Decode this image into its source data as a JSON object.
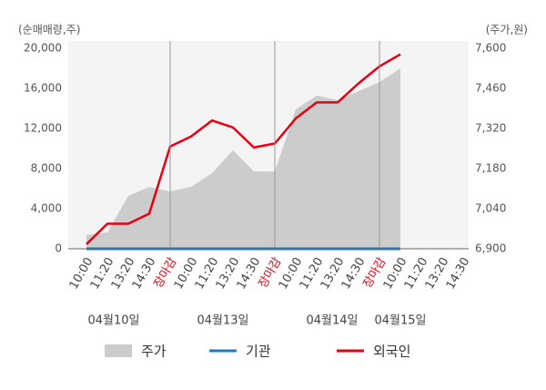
{
  "chart_data": {
    "type": "line",
    "y_axis_label": "(순매매량,주)",
    "y2_axis_label": "(주가,원)",
    "categories": [
      "10:00",
      "11:20",
      "13:20",
      "14:30",
      "장마감",
      "10:00",
      "11:20",
      "13:20",
      "14:30",
      "장마감",
      "10:00",
      "11:20",
      "13:20",
      "14:30",
      "장마감",
      "10:00",
      "11:20",
      "13:20",
      "14:30"
    ],
    "dates": [
      "04월10일",
      "04월13일",
      "04월14일",
      "04월15일"
    ],
    "ylim": [
      0,
      20000
    ],
    "yticks": [
      0,
      {
        "value": 4000,
        "label": "4,000"
      },
      {
        "value": 8000,
        "label": "8,000"
      },
      {
        "value": 12000,
        "label": "12,000"
      },
      {
        "value": 16000,
        "label": "16,000"
      },
      {
        "value": 20000,
        "label": "20,000"
      }
    ],
    "y2lim": [
      6900,
      7600
    ],
    "y2ticks": [
      {
        "value": 6900,
        "label": "6,900"
      },
      {
        "value": 7040,
        "label": "7,040"
      },
      {
        "value": 7180,
        "label": "7,180"
      },
      {
        "value": 7320,
        "label": "7,320"
      },
      {
        "value": 7460,
        "label": "7,460"
      },
      {
        "value": 7600,
        "label": "7,600"
      }
    ],
    "close_label_color": "#e60012",
    "series": [
      {
        "name": "주가",
        "color": "#cccccc",
        "axis": "y2",
        "kind": "area",
        "values": [
          6948,
          6957,
          7085,
          7116,
          7100,
          7116,
          7164,
          7244,
          7170,
          7170,
          7387,
          7435,
          7419,
          7450,
          7482,
          7530,
          null,
          null,
          null
        ]
      },
      {
        "name": "기관",
        "color": "#1a7bc8",
        "kind": "line",
        "values": [
          0,
          0,
          0,
          0,
          0,
          0,
          0,
          0,
          0,
          0,
          0,
          0,
          0,
          0,
          0,
          0,
          null,
          null,
          null
        ]
      },
      {
        "name": "외국인",
        "color": "#e60012",
        "kind": "line",
        "values": [
          450,
          2500,
          2500,
          3500,
          10200,
          11200,
          12800,
          12100,
          10100,
          10500,
          13000,
          14600,
          14600,
          16500,
          18200,
          19400,
          null,
          null,
          null
        ]
      }
    ]
  }
}
